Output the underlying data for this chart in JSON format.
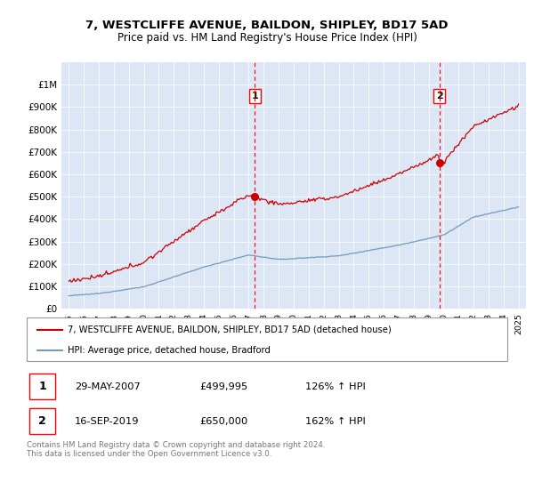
{
  "title1": "7, WESTCLIFFE AVENUE, BAILDON, SHIPLEY, BD17 5AD",
  "title2": "Price paid vs. HM Land Registry's House Price Index (HPI)",
  "red_color": "#cc0000",
  "blue_color": "#7799bb",
  "marker1_year": 2007.41,
  "marker1_price": 499995,
  "marker2_year": 2019.71,
  "marker2_price": 650000,
  "legend_line1": "7, WESTCLIFFE AVENUE, BAILDON, SHIPLEY, BD17 5AD (detached house)",
  "legend_line2": "HPI: Average price, detached house, Bradford",
  "footnote": "Contains HM Land Registry data © Crown copyright and database right 2024.\nThis data is licensed under the Open Government Licence v3.0.",
  "table_rows": [
    [
      "1",
      "29-MAY-2007",
      "£499,995",
      "126% ↑ HPI"
    ],
    [
      "2",
      "16-SEP-2019",
      "£650,000",
      "162% ↑ HPI"
    ]
  ],
  "ylim": [
    0,
    1100000
  ],
  "xlim": [
    1994.5,
    2025.5
  ],
  "yticks": [
    0,
    100000,
    200000,
    300000,
    400000,
    500000,
    600000,
    700000,
    800000,
    900000,
    1000000
  ],
  "ytick_labels": [
    "£0",
    "£100K",
    "£200K",
    "£300K",
    "£400K",
    "£500K",
    "£600K",
    "£700K",
    "£800K",
    "£900K",
    "£1M"
  ],
  "plot_bg": "#dce6f5",
  "grid_color": "#ffffff"
}
